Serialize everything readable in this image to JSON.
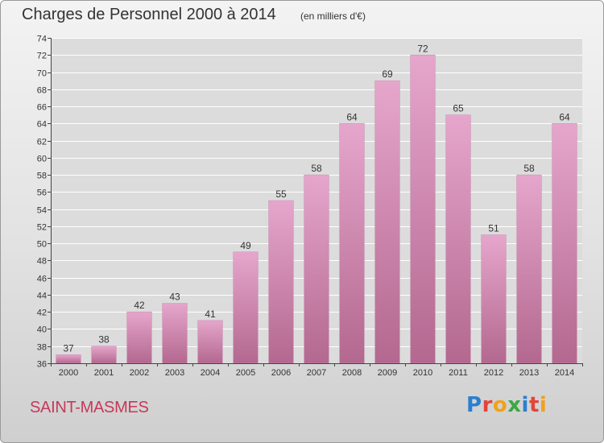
{
  "header": {
    "title": "Charges de Personnel 2000 à 2014",
    "unit_note": "(en milliers d'€)"
  },
  "footer": {
    "commune": "SAINT-MASMES",
    "logo_text": "Proxiti",
    "logo_letters": [
      {
        "char": "P",
        "color": "#2b7fd0"
      },
      {
        "char": "r",
        "color": "#e2453a"
      },
      {
        "char": "o",
        "color": "#f0a21a"
      },
      {
        "char": "x",
        "color": "#3aa845"
      },
      {
        "char": "i",
        "color": "#2b7fd0"
      },
      {
        "char": "t",
        "color": "#e2453a"
      },
      {
        "char": "i",
        "color": "#f0a21a"
      }
    ]
  },
  "colors": {
    "bar_top": "#e6a6cc",
    "bar_bottom": "#b3688f",
    "grid": "#ffffff",
    "axis_text": "#333333"
  },
  "chart_data": {
    "type": "bar",
    "title": "Charges de Personnel 2000 à 2014",
    "subtitle": "(en milliers d'€)",
    "categories": [
      "2000",
      "2001",
      "2002",
      "2003",
      "2004",
      "2005",
      "2006",
      "2007",
      "2008",
      "2009",
      "2010",
      "2011",
      "2012",
      "2013",
      "2014"
    ],
    "values": [
      37,
      38,
      42,
      43,
      41,
      49,
      55,
      58,
      64,
      69,
      72,
      65,
      51,
      58,
      64
    ],
    "ylim": [
      36,
      74
    ],
    "ytick_step": 2,
    "grid": true,
    "data_labels": true
  }
}
